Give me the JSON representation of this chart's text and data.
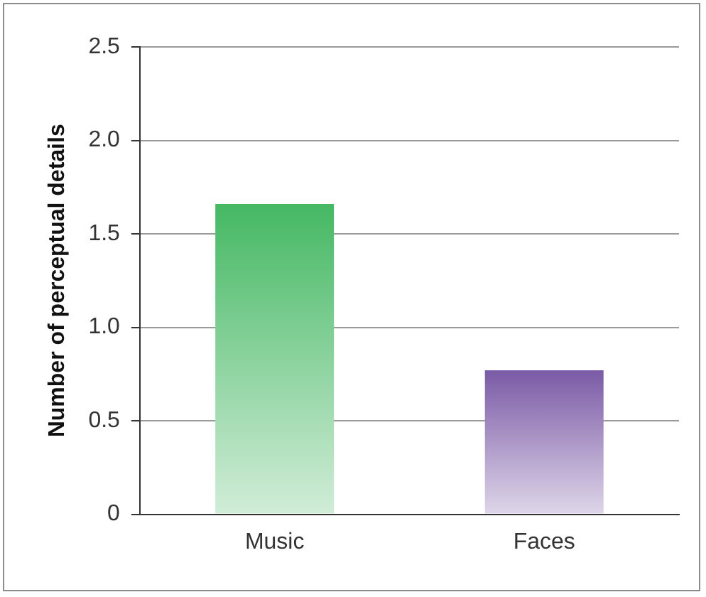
{
  "chart_data": {
    "type": "bar",
    "ylabel": "Number of perceptual details",
    "categories": [
      "Music",
      "Faces"
    ],
    "series": [
      {
        "colors": [
          "#45b863",
          "#7b5aa6"
        ],
        "values": [
          1.66,
          0.77
        ]
      }
    ],
    "ylim": [
      0,
      2.5
    ],
    "yticks": [
      {
        "value": 0,
        "label": "0"
      },
      {
        "value": 0.5,
        "label": "0.5"
      },
      {
        "value": 1,
        "label": "1.0"
      },
      {
        "value": 1.5,
        "label": "1.5"
      },
      {
        "value": 2,
        "label": "2.0"
      },
      {
        "value": 2.5,
        "label": "2.5"
      }
    ],
    "grid": "y",
    "legend": false
  }
}
